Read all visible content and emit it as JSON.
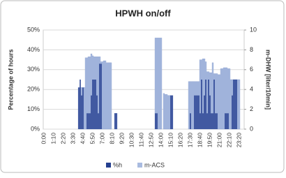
{
  "chart_data": {
    "type": "bar",
    "title": "HPWH on/off",
    "ylabel": "Percentage of hours",
    "y2label": "m-DHW [liter/10min]",
    "categories": [
      "0:00",
      null,
      null,
      null,
      null,
      null,
      null,
      "1:10",
      null,
      null,
      null,
      null,
      null,
      null,
      "2:20",
      null,
      null,
      null,
      null,
      null,
      null,
      "3:30",
      null,
      null,
      null,
      null,
      null,
      null,
      "4:40",
      null,
      null,
      null,
      null,
      null,
      null,
      "5:50",
      null,
      null,
      null,
      null,
      null,
      null,
      "7:00",
      null,
      null,
      null,
      null,
      null,
      null,
      "8:10",
      null,
      null,
      null,
      null,
      null,
      null,
      "9:20",
      null,
      null,
      null,
      null,
      null,
      null,
      "10:30",
      null,
      null,
      null,
      null,
      null,
      null,
      "11:40",
      null,
      null,
      null,
      null,
      null,
      null,
      "12:50",
      null,
      null,
      null,
      null,
      null,
      null,
      "14:00",
      null,
      null,
      null,
      null,
      null,
      null,
      "15:10",
      null,
      null,
      null,
      null,
      null,
      null,
      "16:20",
      null,
      null,
      null,
      null,
      null,
      null,
      "17:30",
      null,
      null,
      null,
      null,
      null,
      null,
      "18:40",
      null,
      null,
      null,
      null,
      null,
      null,
      "19:50",
      null,
      null,
      null,
      null,
      null,
      null,
      "21:00",
      null,
      null,
      null,
      null,
      null,
      null,
      "22:10",
      null,
      null,
      null,
      null,
      null,
      null,
      "23:20",
      null,
      null,
      null
    ],
    "series": [
      {
        "name": "m-ACS",
        "color": "#a9bbe0",
        "axis": "y2",
        "values": [
          0,
          0,
          0,
          0,
          0,
          0,
          0,
          0,
          0,
          0,
          0,
          0,
          0,
          0,
          0,
          0,
          0,
          0,
          0,
          0,
          0,
          0,
          0,
          0,
          0,
          4.2,
          4.2,
          4.2,
          4.2,
          4.2,
          7.2,
          7.2,
          7.3,
          7.3,
          7.6,
          7.4,
          7.3,
          7.3,
          7.3,
          7.3,
          7.3,
          6.8,
          6.8,
          6.9,
          6.9,
          6.7,
          6.7,
          6.7,
          6.7,
          0,
          0,
          1.6,
          1.6,
          0,
          0,
          0,
          0,
          0,
          0,
          0,
          0,
          0,
          0,
          0,
          0,
          0,
          0,
          0,
          0,
          0,
          0,
          0,
          0,
          0,
          0,
          0,
          0,
          0,
          0,
          0,
          9.2,
          9.2,
          9.2,
          9.2,
          9.2,
          0,
          3.6,
          3.5,
          3.5,
          3.4,
          3.4,
          3.4,
          3.4,
          0,
          0,
          0,
          0,
          0,
          0,
          0,
          0,
          0,
          0,
          0,
          4.8,
          4.8,
          4.8,
          4.8,
          4.8,
          4.8,
          4.8,
          4.8,
          7.0,
          7.0,
          7.1,
          7.1,
          6.8,
          5.8,
          5.8,
          5.7,
          5.7,
          6.7,
          5.6,
          5.6,
          5.6,
          5.5,
          5.5,
          6.1,
          6.1,
          6.2,
          6.2,
          6.2,
          6.1,
          6.1,
          5.0,
          5.0,
          5.0,
          5.0,
          5.0,
          5.0,
          5.0,
          0,
          0,
          0
        ]
      },
      {
        "name": "%h",
        "color": "#243f8f",
        "values": [
          0,
          0,
          0,
          0,
          0,
          0,
          0,
          0,
          0,
          0,
          0,
          0,
          0,
          0,
          0,
          0,
          0,
          0,
          0,
          0,
          0,
          0,
          0,
          0,
          0,
          21,
          25,
          17,
          21,
          0,
          0,
          8,
          8,
          8,
          17,
          25,
          25,
          25,
          17,
          8,
          33,
          33,
          0,
          0,
          0,
          0,
          0,
          0,
          0,
          0,
          0,
          8,
          8,
          0,
          0,
          0,
          0,
          0,
          0,
          0,
          0,
          0,
          0,
          0,
          0,
          0,
          0,
          0,
          0,
          0,
          0,
          0,
          0,
          0,
          0,
          0,
          0,
          0,
          0,
          0,
          8,
          8,
          0,
          0,
          0,
          0,
          0,
          0,
          0,
          0,
          0,
          17,
          17,
          0,
          0,
          0,
          0,
          0,
          0,
          0,
          0,
          0,
          0,
          0,
          0,
          8,
          0,
          0,
          17,
          17,
          17,
          17,
          8,
          25,
          8,
          17,
          25,
          8,
          25,
          17,
          8,
          8,
          25,
          8,
          8,
          0,
          0,
          0,
          0,
          0,
          8,
          8,
          8,
          0,
          0,
          17,
          25,
          25,
          25,
          0,
          0,
          0,
          0,
          0
        ]
      }
    ],
    "ylim": [
      0,
      50
    ],
    "yticks": [
      {
        "value": 0,
        "label": "0%"
      },
      {
        "value": 10,
        "label": "10%"
      },
      {
        "value": 20,
        "label": "20%"
      },
      {
        "value": 30,
        "label": "30%"
      },
      {
        "value": 40,
        "label": "40%"
      },
      {
        "value": 50,
        "label": "50%"
      }
    ],
    "y2lim": [
      0,
      10
    ],
    "y2ticks": [
      0,
      2,
      4,
      6,
      8,
      10
    ],
    "grid": true
  }
}
